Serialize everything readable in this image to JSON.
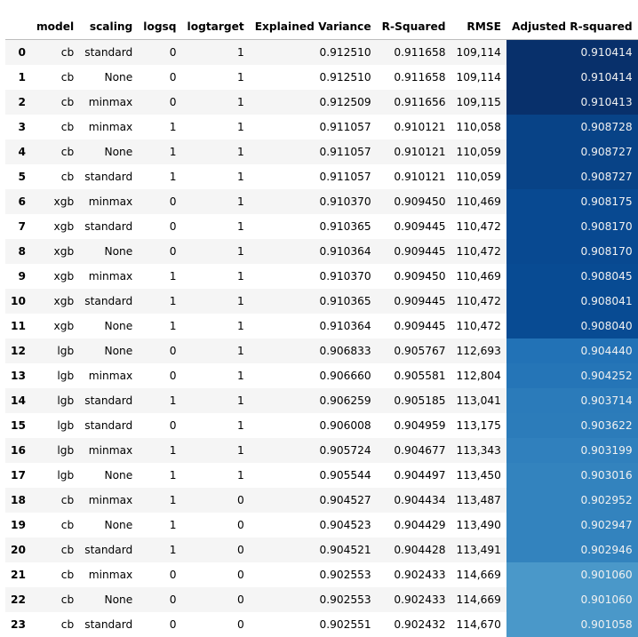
{
  "chart_data": {
    "type": "table",
    "columns": [
      "",
      "model",
      "scaling",
      "logsq",
      "logtarget",
      "Explained Variance",
      "R-Squared",
      "RMSE",
      "Adjusted R-squared"
    ],
    "heatmap_column": "Adjusted R-squared",
    "heatmap_colormap": "Blues",
    "heatmap_range": [
      0.901058,
      0.910414
    ],
    "rows": [
      [
        "0",
        "cb",
        "standard",
        "0",
        "1",
        "0.912510",
        "0.911658",
        "109,114",
        "0.910414"
      ],
      [
        "1",
        "cb",
        "None",
        "0",
        "1",
        "0.912510",
        "0.911658",
        "109,114",
        "0.910414"
      ],
      [
        "2",
        "cb",
        "minmax",
        "0",
        "1",
        "0.912509",
        "0.911656",
        "109,115",
        "0.910413"
      ],
      [
        "3",
        "cb",
        "minmax",
        "1",
        "1",
        "0.911057",
        "0.910121",
        "110,058",
        "0.908728"
      ],
      [
        "4",
        "cb",
        "None",
        "1",
        "1",
        "0.911057",
        "0.910121",
        "110,059",
        "0.908727"
      ],
      [
        "5",
        "cb",
        "standard",
        "1",
        "1",
        "0.911057",
        "0.910121",
        "110,059",
        "0.908727"
      ],
      [
        "6",
        "xgb",
        "minmax",
        "0",
        "1",
        "0.910370",
        "0.909450",
        "110,469",
        "0.908175"
      ],
      [
        "7",
        "xgb",
        "standard",
        "0",
        "1",
        "0.910365",
        "0.909445",
        "110,472",
        "0.908170"
      ],
      [
        "8",
        "xgb",
        "None",
        "0",
        "1",
        "0.910364",
        "0.909445",
        "110,472",
        "0.908170"
      ],
      [
        "9",
        "xgb",
        "minmax",
        "1",
        "1",
        "0.910370",
        "0.909450",
        "110,469",
        "0.908045"
      ],
      [
        "10",
        "xgb",
        "standard",
        "1",
        "1",
        "0.910365",
        "0.909445",
        "110,472",
        "0.908041"
      ],
      [
        "11",
        "xgb",
        "None",
        "1",
        "1",
        "0.910364",
        "0.909445",
        "110,472",
        "0.908040"
      ],
      [
        "12",
        "lgb",
        "None",
        "0",
        "1",
        "0.906833",
        "0.905767",
        "112,693",
        "0.904440"
      ],
      [
        "13",
        "lgb",
        "minmax",
        "0",
        "1",
        "0.906660",
        "0.905581",
        "112,804",
        "0.904252"
      ],
      [
        "14",
        "lgb",
        "standard",
        "1",
        "1",
        "0.906259",
        "0.905185",
        "113,041",
        "0.903714"
      ],
      [
        "15",
        "lgb",
        "standard",
        "0",
        "1",
        "0.906008",
        "0.904959",
        "113,175",
        "0.903622"
      ],
      [
        "16",
        "lgb",
        "minmax",
        "1",
        "1",
        "0.905724",
        "0.904677",
        "113,343",
        "0.903199"
      ],
      [
        "17",
        "lgb",
        "None",
        "1",
        "1",
        "0.905544",
        "0.904497",
        "113,450",
        "0.903016"
      ],
      [
        "18",
        "cb",
        "minmax",
        "1",
        "0",
        "0.904527",
        "0.904434",
        "113,487",
        "0.902952"
      ],
      [
        "19",
        "cb",
        "None",
        "1",
        "0",
        "0.904523",
        "0.904429",
        "113,490",
        "0.902947"
      ],
      [
        "20",
        "cb",
        "standard",
        "1",
        "0",
        "0.904521",
        "0.904428",
        "113,491",
        "0.902946"
      ],
      [
        "21",
        "cb",
        "minmax",
        "0",
        "0",
        "0.902553",
        "0.902433",
        "114,669",
        "0.901060"
      ],
      [
        "22",
        "cb",
        "None",
        "0",
        "0",
        "0.902553",
        "0.902433",
        "114,669",
        "0.901060"
      ],
      [
        "23",
        "cb",
        "standard",
        "0",
        "0",
        "0.902551",
        "0.902432",
        "114,670",
        "0.901058"
      ]
    ]
  }
}
